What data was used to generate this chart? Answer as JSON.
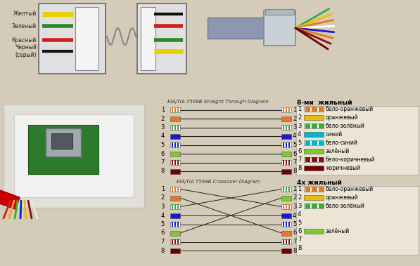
{
  "bg_color": "#d4cbb8",
  "straight_title": "EIA/TIA T568B Straight Through Diagram",
  "crossover_title": "EIA/TIA T568B Crossover Diagram",
  "legend8_title": "8-ми  жильный",
  "legend4_title": "4х жильный",
  "top_labels": [
    "Желтый",
    "Зеленый",
    "Красный",
    "Черный\n(серый)"
  ],
  "top_wire_colors_left": [
    "#e8d000",
    "#2a8a2a",
    "#cc2222",
    "#111111"
  ],
  "top_wire_colors_right": [
    "#111111",
    "#cc2222",
    "#2a8a2a",
    "#e8d000"
  ],
  "wire_defs": [
    {
      "color": "#e87820",
      "stripe": "#ffffff",
      "stripe_color": "#e87820"
    },
    {
      "color": "#e87820",
      "stripe": null
    },
    {
      "color": "#3aaa3a",
      "stripe": "#ffffff",
      "stripe_color": "#3aaa3a"
    },
    {
      "color": "#1a1acc",
      "stripe": null
    },
    {
      "color": "#1a1acc",
      "stripe": "#ffffff",
      "stripe_color": "#1a1acc"
    },
    {
      "color": "#7ec830",
      "stripe": null
    },
    {
      "color": "#8b1010",
      "stripe": "#ffffff",
      "stripe_color": "#8b1010"
    },
    {
      "color": "#6b0000",
      "stripe": null
    }
  ],
  "crossover_map": [
    3,
    6,
    1,
    4,
    5,
    2,
    7,
    8
  ],
  "crossover_right_order": [
    2,
    5,
    0,
    3,
    4,
    1,
    6,
    7
  ],
  "legend8": [
    {
      "num": "1",
      "color": "#e87820",
      "stripe": true,
      "label": "бело-оранжевый"
    },
    {
      "num": "2",
      "color": "#e8c000",
      "stripe": false,
      "label": "оранжевый"
    },
    {
      "num": "3",
      "color": "#3aaa3a",
      "stripe": true,
      "label": "бело-зелёный"
    },
    {
      "num": "4",
      "color": "#00b8cc",
      "stripe": false,
      "label": "синий"
    },
    {
      "num": "5",
      "color": "#00b8cc",
      "stripe": true,
      "label": "бело-синий"
    },
    {
      "num": "6",
      "color": "#7ec830",
      "stripe": false,
      "label": "зелёный"
    },
    {
      "num": "7",
      "color": "#8b1010",
      "stripe": true,
      "label": "бело-коричневый"
    },
    {
      "num": "8",
      "color": "#6b0000",
      "stripe": false,
      "label": "коричневый"
    }
  ],
  "legend4": [
    {
      "num": "1",
      "color": "#e87820",
      "stripe": true,
      "label": "бело-оранжевый"
    },
    {
      "num": "2",
      "color": "#e8c000",
      "stripe": false,
      "label": "оранжевый"
    },
    {
      "num": "3",
      "color": "#3aaa3a",
      "stripe": true,
      "label": "бело-зелёный"
    },
    {
      "num": "4",
      "color": null,
      "stripe": false,
      "label": ""
    },
    {
      "num": "5",
      "color": null,
      "stripe": false,
      "label": ""
    },
    {
      "num": "6",
      "color": "#7ec830",
      "stripe": false,
      "label": "зелёный"
    },
    {
      "num": "7",
      "color": null,
      "stripe": false,
      "label": ""
    },
    {
      "num": "8",
      "color": null,
      "stripe": false,
      "label": ""
    }
  ]
}
